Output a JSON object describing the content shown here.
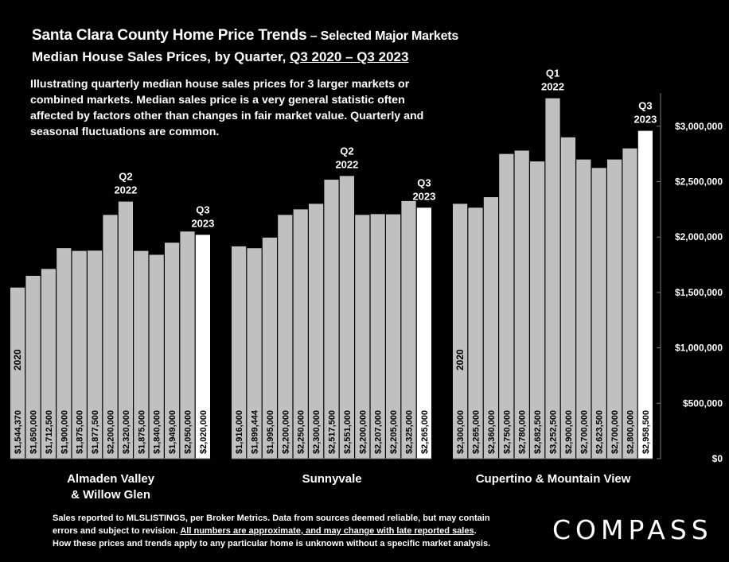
{
  "header": {
    "title": "Santa Clara County Home Price Trends",
    "title_suffix": " – Selected Major Markets",
    "subtitle_prefix": "Median House Sales Prices, by Quarter, ",
    "subtitle_range": "Q3 2020 – Q3 2023"
  },
  "description": "Illustrating quarterly median house sales prices for 3 larger markets or combined markets. Median sales price is a very general statistic often affected by factors other than changes in fair market value. Quarterly and seasonal fluctuations are common.",
  "footer": {
    "line1": "Sales reported to MLSLISTINGS, per Broker Metrics. Data from sources deemed reliable, but may contain",
    "line2_prefix": "errors and subject to revision. ",
    "line2_underlined": "All numbers are approximate, and may change with late reported sales",
    "line2_suffix": ".",
    "line3": "How these prices and trends apply to any particular home is unknown without a specific market analysis."
  },
  "logo_text": "COMPASS",
  "colors": {
    "background": "#000000",
    "bar": "#c0c0c0",
    "bar_highlight": "#ffffff",
    "text": "#ffffff"
  },
  "chart_data": {
    "type": "bar",
    "ylim": [
      0,
      3300000
    ],
    "y_ticks": [
      {
        "value": 0,
        "label": "$0"
      },
      {
        "value": 500000,
        "label": "$500,000"
      },
      {
        "value": 1000000,
        "label": "$1,000,000"
      },
      {
        "value": 1500000,
        "label": "$1,500,000"
      },
      {
        "value": 2000000,
        "label": "$2,000,000"
      },
      {
        "value": 2500000,
        "label": "$2,500,000"
      },
      {
        "value": 3000000,
        "label": "$3,000,000"
      }
    ],
    "groups": [
      {
        "name_line1": "Almaden Valley",
        "name_line2": "& Willow Glen",
        "start_label": "2020",
        "values": [
          1544370,
          1650000,
          1712500,
          1900000,
          1875000,
          1877500,
          2200000,
          2320000,
          1875000,
          1840000,
          1949000,
          2050000,
          2020000
        ],
        "labels": [
          "$1,544,370",
          "$1,650,000",
          "$1,712,500",
          "$1,900,000",
          "$1,875,000",
          "$1,877,500",
          "$2,200,000",
          "$2,320,000",
          "$1,875,000",
          "$1,840,000",
          "$1,949,000",
          "$2,050,000",
          "$2,020,000"
        ],
        "annotations": [
          {
            "index": 7,
            "line1": "Q2",
            "line2": "2022"
          },
          {
            "index": 12,
            "line1": "Q3",
            "line2": "2023"
          }
        ]
      },
      {
        "name_line1": "Sunnyvale",
        "name_line2": "",
        "start_label": "",
        "values": [
          1916000,
          1899444,
          1995000,
          2200000,
          2250000,
          2300000,
          2517500,
          2551000,
          2200000,
          2207000,
          2205000,
          2325000,
          2265000
        ],
        "labels": [
          "$1,916,000",
          "$1,899,444",
          "$1,995,000",
          "$2,200,000",
          "$2,250,000",
          "$2,300,000",
          "$2,517,500",
          "$2,551,000",
          "$2,200,000",
          "$2,207,000",
          "$2,205,000",
          "$2,325,000",
          "$2,265,000"
        ],
        "annotations": [
          {
            "index": 7,
            "line1": "Q2",
            "line2": "2022"
          },
          {
            "index": 12,
            "line1": "Q3",
            "line2": "2023"
          }
        ]
      },
      {
        "name_line1": "Cupertino & Mountain View",
        "name_line2": "",
        "start_label": "2020",
        "values": [
          2300000,
          2265000,
          2360000,
          2750000,
          2780000,
          2682500,
          3252500,
          2900000,
          2700000,
          2623500,
          2700000,
          2800000,
          2958500
        ],
        "labels": [
          "$2,300,000",
          "$2,265,000",
          "$2,360,000",
          "$2,750,000",
          "$2,780,000",
          "$2,682,500",
          "$3,252,500",
          "$2,900,000",
          "$2,700,000",
          "$2,623,500",
          "$2,700,000",
          "$2,800,000",
          "$2,958,500"
        ],
        "annotations": [
          {
            "index": 6,
            "line1": "Q1",
            "line2": "2022"
          },
          {
            "index": 12,
            "line1": "Q3",
            "line2": "2023"
          }
        ]
      }
    ]
  }
}
